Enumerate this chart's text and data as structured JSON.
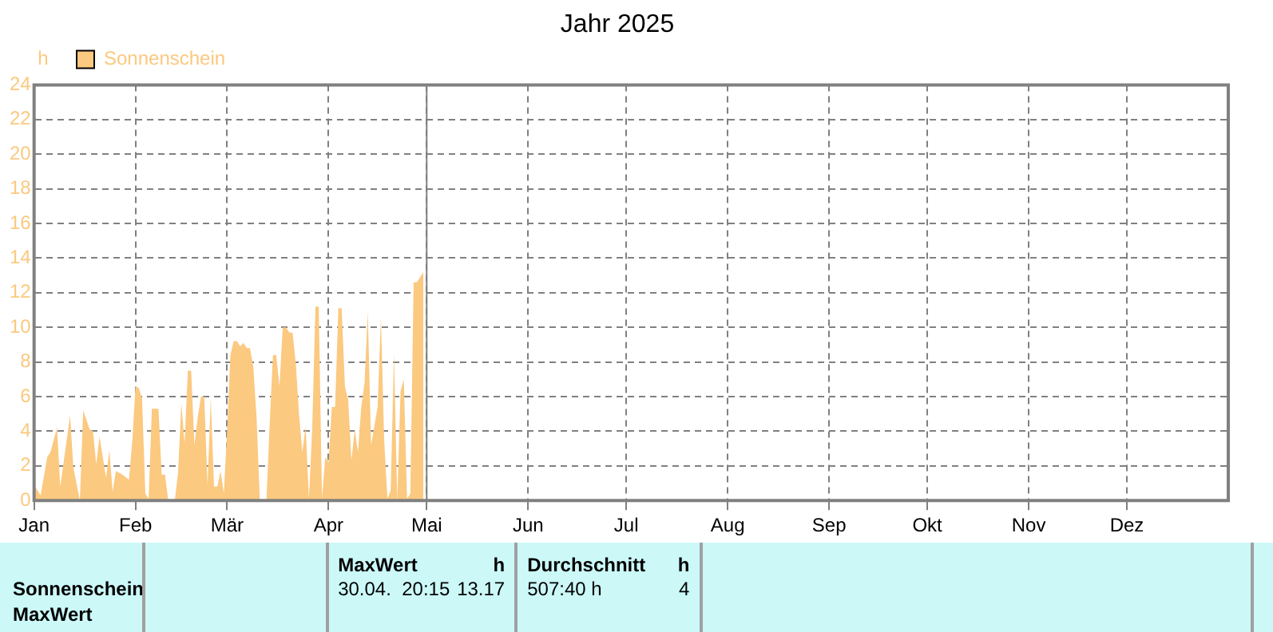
{
  "chart_data": {
    "type": "area",
    "title": "Jahr 2025",
    "ylabel": "h",
    "x": [
      "2025-01-01",
      "2025-01-03",
      "2025-01-05",
      "2025-01-06",
      "2025-01-08",
      "2025-01-09",
      "2025-01-12",
      "2025-01-13",
      "2025-01-15",
      "2025-01-16",
      "2025-01-18",
      "2025-01-19",
      "2025-01-20",
      "2025-01-21",
      "2025-01-23",
      "2025-01-24",
      "2025-01-25",
      "2025-01-26",
      "2025-01-28",
      "2025-01-30",
      "2025-01-31",
      "2025-02-01",
      "2025-02-02",
      "2025-02-03",
      "2025-02-04",
      "2025-02-05",
      "2025-02-06",
      "2025-02-08",
      "2025-02-09",
      "2025-02-10",
      "2025-02-11",
      "2025-02-13",
      "2025-02-14",
      "2025-02-15",
      "2025-02-16",
      "2025-02-17",
      "2025-02-18",
      "2025-02-19",
      "2025-02-20",
      "2025-02-21",
      "2025-02-22",
      "2025-02-23",
      "2025-02-24",
      "2025-02-25",
      "2025-02-26",
      "2025-02-27",
      "2025-02-28",
      "2025-03-01",
      "2025-03-02",
      "2025-03-03",
      "2025-03-04",
      "2025-03-05",
      "2025-03-06",
      "2025-03-07",
      "2025-03-08",
      "2025-03-09",
      "2025-03-10",
      "2025-03-11",
      "2025-03-13",
      "2025-03-14",
      "2025-03-15",
      "2025-03-16",
      "2025-03-17",
      "2025-03-18",
      "2025-03-19",
      "2025-03-20",
      "2025-03-21",
      "2025-03-22",
      "2025-03-23",
      "2025-03-24",
      "2025-03-25",
      "2025-03-26",
      "2025-03-27",
      "2025-03-28",
      "2025-03-29",
      "2025-03-30",
      "2025-03-31",
      "2025-04-01",
      "2025-04-02",
      "2025-04-03",
      "2025-04-04",
      "2025-04-05",
      "2025-04-06",
      "2025-04-07",
      "2025-04-08",
      "2025-04-09",
      "2025-04-10",
      "2025-04-11",
      "2025-04-12",
      "2025-04-13",
      "2025-04-14",
      "2025-04-15",
      "2025-04-16",
      "2025-04-17",
      "2025-04-18",
      "2025-04-19",
      "2025-04-20",
      "2025-04-21",
      "2025-04-22",
      "2025-04-23",
      "2025-04-24",
      "2025-04-25",
      "2025-04-26",
      "2025-04-27",
      "2025-04-28",
      "2025-04-29",
      "2025-04-30"
    ],
    "series": [
      {
        "name": "Sonnenschein",
        "color": "#fbc97f",
        "values": [
          0.9,
          0.3,
          2.5,
          2.8,
          4.2,
          0.8,
          4.9,
          1.9,
          0,
          5.2,
          4.1,
          4.0,
          2.1,
          3.7,
          1.3,
          2.9,
          0.5,
          1.7,
          1.5,
          1.2,
          3.4,
          6.6,
          6.5,
          5.9,
          0.4,
          0.1,
          5.3,
          5.3,
          1.5,
          1.5,
          0,
          0,
          1.6,
          5.6,
          3.3,
          7.5,
          7.5,
          3.2,
          4.8,
          6.0,
          6.0,
          0.9,
          5.9,
          0.8,
          0.8,
          1.7,
          0.4,
          4.1,
          8.4,
          9.2,
          9.2,
          8.9,
          9.1,
          8.8,
          8.8,
          7.7,
          4.8,
          0,
          0,
          4.4,
          8.4,
          8.4,
          6.6,
          10.0,
          10.0,
          9.7,
          9.7,
          7.9,
          4.9,
          2.8,
          4.3,
          0.1,
          4.1,
          11.2,
          11.2,
          0.1,
          2.5,
          2.2,
          5.4,
          5.4,
          11.1,
          11.1,
          6.6,
          5.8,
          2.3,
          4.1,
          2.8,
          5.4,
          6.8,
          10.9,
          3.2,
          4.3,
          5.4,
          10.6,
          3.5,
          0.1,
          0.6,
          8.5,
          0,
          6.3,
          7.0,
          0.1,
          0.4,
          12.6,
          12.6,
          12.9,
          13.2
        ]
      }
    ],
    "xlim": [
      "2025-01-01",
      "2026-01-01"
    ],
    "xticks": [
      {
        "value": "2025-01-01",
        "label": "Jan"
      },
      {
        "value": "2025-02-01",
        "label": "Feb"
      },
      {
        "value": "2025-03-01",
        "label": "Mär"
      },
      {
        "value": "2025-04-01",
        "label": "Apr"
      },
      {
        "value": "2025-05-01",
        "label": "Mai"
      },
      {
        "value": "2025-06-01",
        "label": "Jun"
      },
      {
        "value": "2025-07-01",
        "label": "Jul"
      },
      {
        "value": "2025-08-01",
        "label": "Aug"
      },
      {
        "value": "2025-09-01",
        "label": "Sep"
      },
      {
        "value": "2025-10-01",
        "label": "Okt"
      },
      {
        "value": "2025-11-01",
        "label": "Nov"
      },
      {
        "value": "2025-12-01",
        "label": "Dez"
      }
    ],
    "ylim": [
      0,
      24
    ],
    "yticks": [
      0,
      2,
      4,
      6,
      8,
      10,
      12,
      14,
      16,
      18,
      20,
      22,
      24
    ],
    "ref_lines": [
      {
        "axis": "x",
        "value": "2025-05-01",
        "color": "#808080"
      }
    ],
    "grid": true,
    "legend": "top left",
    "line_style": "dashed",
    "annotations": [
      "Sonnenschein",
      "MaxWert",
      "MaxWert",
      "h",
      "30.04.  20:15",
      "13.17",
      "Durchschnitt",
      "h",
      "507:40 h",
      "4"
    ]
  }
}
